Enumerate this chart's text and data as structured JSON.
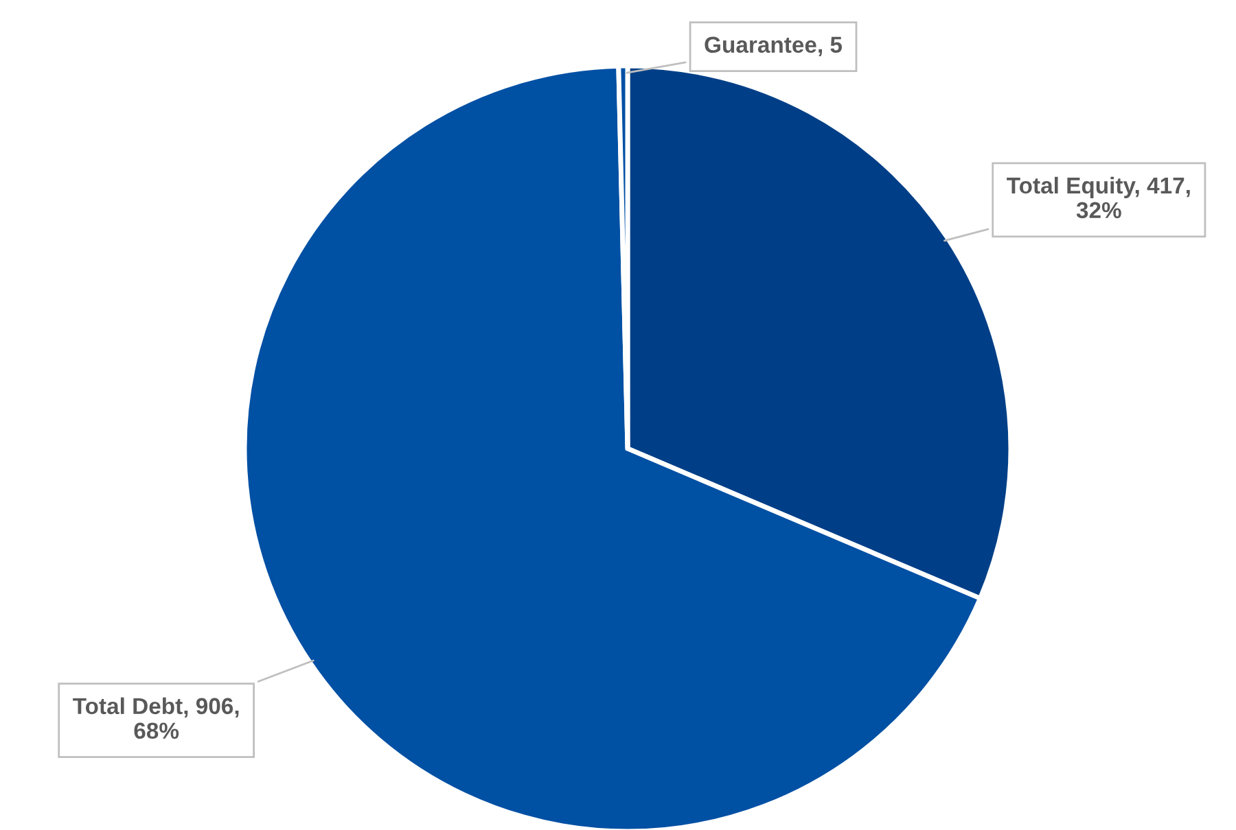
{
  "chart_data": {
    "type": "pie",
    "categories": [
      "Total Equity",
      "Total Debt",
      "Guarantee"
    ],
    "values": [
      417,
      906,
      5
    ],
    "colors": [
      "#003f87",
      "#0050a4",
      "#0050a4"
    ],
    "value_labels": [
      "417,\n32%",
      "906,\n68%",
      "5"
    ],
    "legend": false
  }
}
